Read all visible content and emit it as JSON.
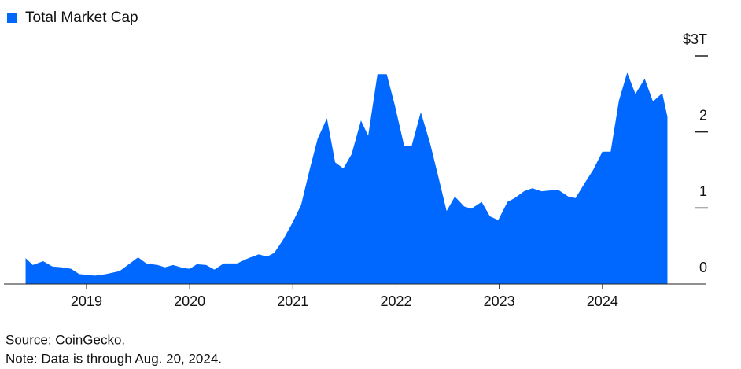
{
  "chart_data": {
    "type": "area",
    "series": [
      {
        "name": "Total Market Cap",
        "color": "#0068ff",
        "values": [
          0.34,
          0.25,
          0.3,
          0.23,
          0.22,
          0.2,
          0.13,
          0.11,
          0.13,
          0.17,
          0.26,
          0.35,
          0.27,
          0.25,
          0.22,
          0.25,
          0.21,
          0.2,
          0.26,
          0.25,
          0.19,
          0.27,
          0.27,
          0.34,
          0.39,
          0.36,
          0.41,
          0.57,
          0.79,
          1.04,
          1.49,
          1.91,
          2.18,
          1.6,
          1.52,
          1.71,
          2.15,
          1.95,
          2.76,
          2.76,
          2.34,
          1.81,
          1.81,
          2.26,
          1.85,
          1.41,
          0.96,
          1.15,
          1.02,
          0.99,
          1.08,
          0.89,
          0.84,
          1.08,
          1.13,
          1.22,
          1.26,
          1.22,
          1.24,
          1.15,
          1.13,
          1.33,
          1.5,
          1.74,
          1.74,
          2.41,
          2.78,
          2.5,
          2.7,
          2.4,
          2.51,
          2.2
        ]
      }
    ],
    "x": [
      2018.41,
      2018.48,
      2018.58,
      2018.67,
      2018.76,
      2018.85,
      2018.93,
      2019.08,
      2019.19,
      2019.32,
      2019.41,
      2019.5,
      2019.58,
      2019.69,
      2019.76,
      2019.84,
      2019.94,
      2020.0,
      2020.07,
      2020.16,
      2020.24,
      2020.33,
      2020.46,
      2020.57,
      2020.67,
      2020.75,
      2020.82,
      2020.9,
      2020.99,
      2021.08,
      2021.16,
      2021.24,
      2021.33,
      2021.41,
      2021.49,
      2021.57,
      2021.66,
      2021.73,
      2021.82,
      2021.91,
      2021.99,
      2022.08,
      2022.15,
      2022.24,
      2022.33,
      2022.41,
      2022.49,
      2022.57,
      2022.66,
      2022.73,
      2022.83,
      2022.91,
      2022.99,
      2023.08,
      2023.15,
      2023.24,
      2023.32,
      2023.41,
      2023.57,
      2023.67,
      2023.74,
      2023.83,
      2023.91,
      2024.0,
      2024.08,
      2024.16,
      2024.24,
      2024.32,
      2024.41,
      2024.49,
      2024.58,
      2024.63
    ],
    "xlim": [
      2018.2,
      2025.0
    ],
    "xticks": [
      2019,
      2020,
      2021,
      2022,
      2023,
      2024
    ],
    "ylim": [
      0,
      3
    ],
    "yticks": [
      0,
      1,
      2,
      {
        "value": 3,
        "label": "$3T"
      }
    ],
    "source": "Source: CoinGecko.",
    "note": "Note: Data is through Aug. 20, 2024."
  }
}
